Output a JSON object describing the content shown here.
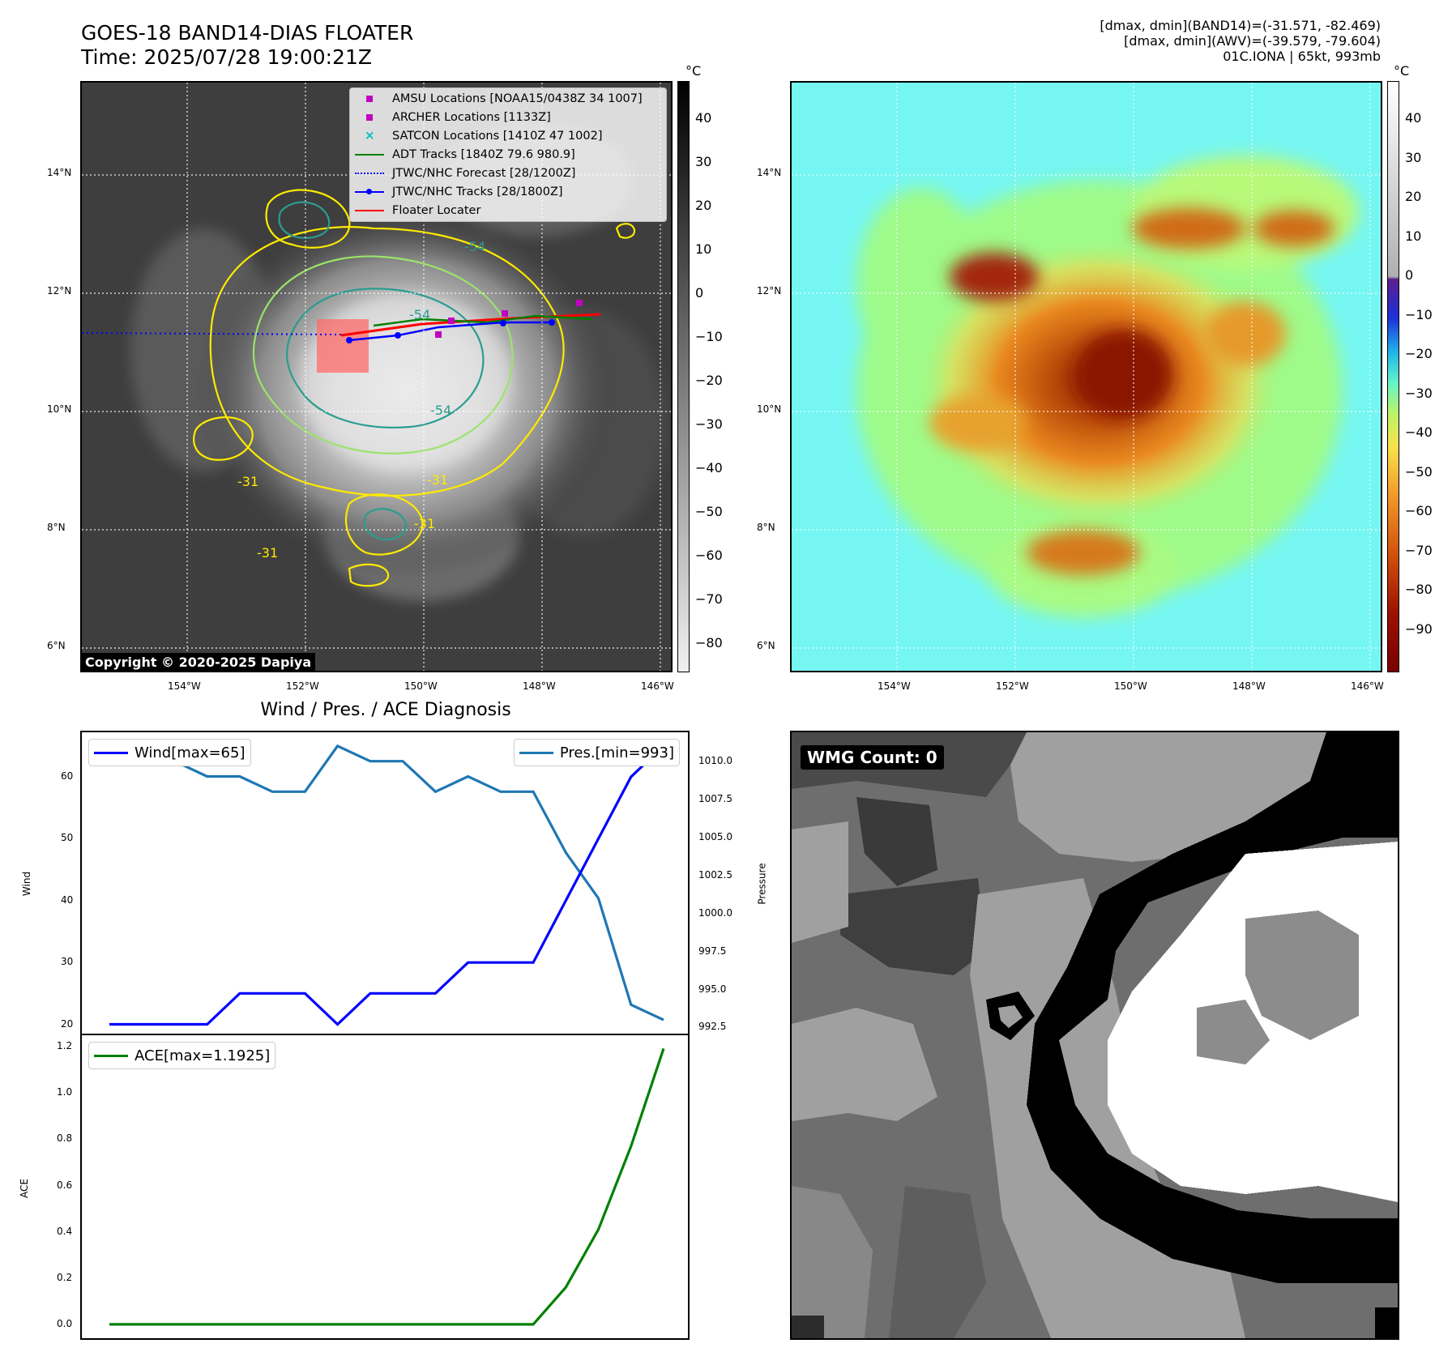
{
  "header": {
    "title_line1": "GOES-18 BAND14-DIAS FLOATER",
    "title_line2": "Time: 2025/07/28 19:00:21Z",
    "meta_line1": "[dmax, dmin](BAND14)=(-31.571, -82.469)",
    "meta_line2": "[dmax, dmin](AWV)=(-39.579, -79.604)",
    "meta_line3": "01C.IONA | 65kt, 993mb"
  },
  "map_axes": {
    "lat_labels": [
      "14°N",
      "12°N",
      "10°N",
      "8°N",
      "6°N"
    ],
    "lon_labels": [
      "154°W",
      "152°W",
      "150°W",
      "148°W",
      "146°W"
    ]
  },
  "ir_panel": {
    "legend": [
      {
        "label": "AMSU Locations [NOAA15/0438Z 34 1007]",
        "key": "square",
        "color": "#c000c0"
      },
      {
        "label": "ARCHER Locations [1133Z]",
        "key": "square",
        "color": "#c000c0"
      },
      {
        "label": "SATCON Locations [1410Z 47 1002]",
        "key": "x",
        "color": "#00bfbf"
      },
      {
        "label": "ADT Tracks [1840Z 79.6 980.9]",
        "key": "line",
        "color": "#008000"
      },
      {
        "label": "JTWC/NHC Forecast [28/1200Z]",
        "key": "dotted",
        "color": "#0000ff"
      },
      {
        "label": "JTWC/NHC Tracks [28/1800Z]",
        "key": "line-dot",
        "color": "#0000ff"
      },
      {
        "label": "Floater Locater",
        "key": "line",
        "color": "#ff0000"
      }
    ],
    "contour_labels": [
      "-54",
      "-31",
      "-31",
      "-31",
      "-54",
      "-54",
      "-31"
    ],
    "copyright": "Copyright © 2020-2025 Dapiya",
    "colorbar_unit": "°C",
    "colorbar_ticks": [
      "40",
      "30",
      "20",
      "10",
      "0",
      "−10",
      "−20",
      "−30",
      "−40",
      "−50",
      "−60",
      "−70",
      "−80"
    ]
  },
  "awv_panel": {
    "colorbar_unit": "°C",
    "colorbar_ticks": [
      "40",
      "30",
      "20",
      "10",
      "0",
      "−10",
      "−20",
      "−30",
      "−40",
      "−50",
      "−60",
      "−70",
      "−80",
      "−90"
    ]
  },
  "wmg_panel": {
    "badge": "WMG Count: 0"
  },
  "chart_data": [
    {
      "type": "line",
      "title": "Wind / Pres. / ACE Diagnosis",
      "series": [
        {
          "name": "Wind[max=65]",
          "axis": "left",
          "color": "#0000ff",
          "values": [
            20,
            20,
            20,
            20,
            25,
            25,
            25,
            20,
            25,
            25,
            25,
            30,
            30,
            30,
            40,
            50,
            60,
            65
          ]
        },
        {
          "name": "Pres.[min=993]",
          "axis": "right",
          "color": "#1f77b4",
          "values": [
            1010,
            1010,
            1010,
            1009,
            1009,
            1008,
            1008,
            1011,
            1010,
            1010,
            1008,
            1009,
            1008,
            1008,
            1004,
            1001,
            994,
            993
          ]
        }
      ],
      "ylabel": "Wind",
      "y2label": "Pressure",
      "ylim": [
        18.5,
        67.2
      ],
      "y2lim": [
        992.1,
        1011.9
      ],
      "yticks": [
        "60",
        "50",
        "40",
        "30",
        "20"
      ],
      "y2ticks": [
        "1010.0",
        "1007.5",
        "1005.0",
        "1002.5",
        "1000.0",
        "997.5",
        "995.0",
        "992.5"
      ]
    },
    {
      "type": "line",
      "series": [
        {
          "name": "ACE[max=1.1925]",
          "color": "#008000",
          "values": [
            0,
            0,
            0,
            0,
            0,
            0,
            0,
            0,
            0,
            0,
            0,
            0,
            0,
            0,
            0.16,
            0.41,
            0.77,
            1.1925
          ]
        }
      ],
      "ylabel": "ACE",
      "ylim": [
        -0.06,
        1.25
      ],
      "yticks": [
        "1.2",
        "1.0",
        "0.8",
        "0.6",
        "0.4",
        "0.2",
        "0.0"
      ]
    }
  ]
}
